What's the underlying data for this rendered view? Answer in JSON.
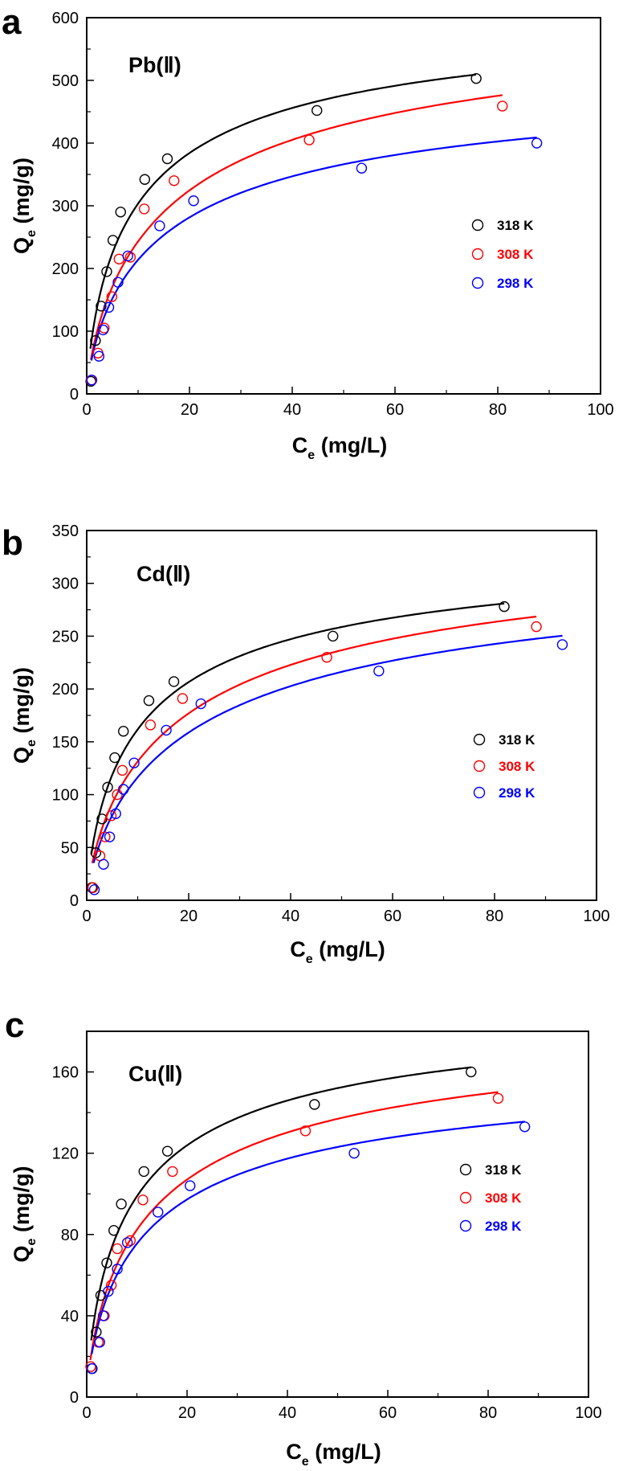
{
  "chart_data": [
    {
      "type": "scatter",
      "panel_label": "a",
      "title": "Pb(Ⅱ)",
      "xlabel": {
        "main": "C",
        "sub": "e",
        "unit": " (mg/L)"
      },
      "ylabel": {
        "main": "Q",
        "sub": "e",
        "unit": " (mg/g)"
      },
      "xlim": [
        0,
        100
      ],
      "ylim": [
        0,
        600
      ],
      "xticks": [
        0,
        20,
        40,
        60,
        80,
        100
      ],
      "yticks": [
        0,
        100,
        200,
        300,
        400,
        500,
        600
      ],
      "legend_position": "right",
      "series": [
        {
          "name": "318 K",
          "color": "#000000",
          "x": [
            0.8,
            1.7,
            2.8,
            3.9,
            5.1,
            6.6,
            11.3,
            15.7,
            44.8,
            75.8
          ],
          "y": [
            20,
            85,
            140,
            195,
            245,
            290,
            342,
            375,
            452,
            503
          ]
        },
        {
          "name": "308 K",
          "color": "#ff0000",
          "x": [
            0.9,
            2.2,
            3.4,
            4.9,
            6.3,
            8.5,
            11.2,
            17.0,
            43.3,
            80.9
          ],
          "y": [
            22,
            65,
            105,
            155,
            215,
            218,
            295,
            340,
            405,
            459
          ]
        },
        {
          "name": "298 K",
          "color": "#0000ff",
          "x": [
            1.0,
            2.4,
            3.2,
            4.3,
            6.1,
            8.0,
            14.2,
            20.8,
            53.5,
            87.6
          ],
          "y": [
            22,
            60,
            102,
            138,
            178,
            220,
            268,
            308,
            360,
            400
          ]
        }
      ]
    },
    {
      "type": "scatter",
      "panel_label": "b",
      "title": "Cd(Ⅱ)",
      "xlabel": {
        "main": "C",
        "sub": "e",
        "unit": " (mg/L)"
      },
      "ylabel": {
        "main": "Q",
        "sub": "e",
        "unit": " (mg/g)"
      },
      "xlim": [
        0,
        100
      ],
      "ylim": [
        0,
        350
      ],
      "xticks": [
        0,
        20,
        40,
        60,
        80,
        100
      ],
      "yticks": [
        0,
        50,
        100,
        150,
        200,
        250,
        300,
        350
      ],
      "legend_position": "right",
      "series": [
        {
          "name": "318 K",
          "color": "#000000",
          "x": [
            1.0,
            1.8,
            3.0,
            4.1,
            5.5,
            7.2,
            12.2,
            17.1,
            48.3,
            81.9
          ],
          "y": [
            12,
            45,
            77,
            107,
            135,
            160,
            189,
            207,
            250,
            278
          ]
        },
        {
          "name": "308 K",
          "color": "#ff0000",
          "x": [
            1.2,
            2.6,
            3.6,
            4.8,
            6.0,
            7.0,
            12.5,
            18.8,
            47.1,
            88.2
          ],
          "y": [
            12,
            42,
            60,
            80,
            100,
            123,
            166,
            191,
            230,
            259
          ]
        },
        {
          "name": "298 K",
          "color": "#0000ff",
          "x": [
            1.5,
            3.3,
            4.5,
            5.7,
            7.2,
            9.3,
            15.6,
            22.4,
            57.3,
            93.3
          ],
          "y": [
            10,
            34,
            60,
            82,
            105,
            130,
            161,
            186,
            217,
            242
          ]
        }
      ]
    },
    {
      "type": "scatter",
      "panel_label": "c",
      "title": "Cu(Ⅱ)",
      "xlabel": {
        "main": "C",
        "sub": "e",
        "unit": " (mg/L)"
      },
      "ylabel": {
        "main": "Q",
        "sub": "e",
        "unit": " (mg/g)"
      },
      "xlim": [
        0,
        100
      ],
      "ylim": [
        0,
        180
      ],
      "xticks": [
        0,
        20,
        40,
        60,
        80,
        100
      ],
      "yticks": [
        0,
        40,
        80,
        120,
        160
      ],
      "legend_position": "right",
      "series": [
        {
          "name": "318 K",
          "color": "#000000",
          "x": [
            1.0,
            1.9,
            2.8,
            4.0,
            5.4,
            6.9,
            11.4,
            16.1,
            45.4,
            76.6
          ],
          "y": [
            14,
            32,
            50,
            66,
            82,
            95,
            111,
            121,
            144,
            160
          ]
        },
        {
          "name": "308 K",
          "color": "#ff0000",
          "x": [
            0.8,
            2.3,
            3.5,
            4.9,
            6.1,
            8.7,
            11.2,
            17.1,
            43.6,
            82.0
          ],
          "y": [
            15,
            27,
            40,
            55,
            73,
            77,
            97,
            111,
            131,
            147
          ]
        },
        {
          "name": "298 K",
          "color": "#0000ff",
          "x": [
            1.1,
            2.6,
            3.3,
            4.3,
            6.1,
            8.1,
            14.2,
            20.6,
            53.3,
            87.3
          ],
          "y": [
            14,
            27,
            40,
            52,
            63,
            76,
            91,
            104,
            120,
            133
          ]
        }
      ]
    }
  ]
}
